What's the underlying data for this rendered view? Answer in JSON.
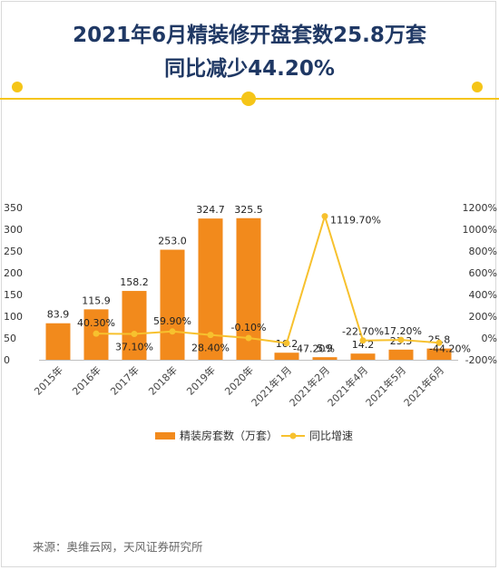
{
  "title_line1": "2021年6月精装修开盘套数25.8万套",
  "title_line2": "同比减少44.20%",
  "source": "来源：奥维云网，天风证券研究所",
  "colors": {
    "bar": "#f28a1c",
    "line": "#f7c12e",
    "title": "#1f3864",
    "accent": "#f5c518"
  },
  "chart_data": {
    "type": "bar",
    "categories": [
      "2015年",
      "2016年",
      "2017年",
      "2018年",
      "2019年",
      "2020年",
      "2021年1月",
      "2021年2月",
      "2021年4月",
      "2021年5月",
      "2021年6月"
    ],
    "series": [
      {
        "name": "精装房套数（万套）",
        "type": "bar",
        "axis": "left",
        "values": [
          83.9,
          115.9,
          158.2,
          253.0,
          324.7,
          325.5,
          16.2,
          5.9,
          14.2,
          23.3,
          25.8
        ],
        "labels": [
          "83.9",
          "115.9",
          "158.2",
          "253.0",
          "324.7",
          "325.5",
          "16.2",
          "5.9",
          "14.2",
          "23.3",
          "25.8"
        ]
      },
      {
        "name": "同比增速",
        "type": "line",
        "axis": "right",
        "values": [
          null,
          40.3,
          37.1,
          59.9,
          28.4,
          -0.1,
          -47.2,
          1119.7,
          -22.7,
          -17.2,
          -44.2
        ],
        "labels": [
          "",
          "40.30%",
          "37.10%",
          "59.90%",
          "28.40%",
          "-0.10%",
          "-47.20%",
          "1119.70%",
          "-22.70%",
          "-17.20%",
          "-44.20%"
        ]
      }
    ],
    "y_left": {
      "range": [
        0,
        350
      ],
      "ticks": [
        "0",
        "50",
        "100",
        "150",
        "200",
        "250",
        "300",
        "350"
      ]
    },
    "y_right": {
      "range": [
        -200,
        1200
      ],
      "ticks": [
        "-200%",
        "0%",
        "200%",
        "400%",
        "600%",
        "800%",
        "1000%",
        "1200%"
      ]
    },
    "legend_position": "bottom",
    "grid": false
  }
}
